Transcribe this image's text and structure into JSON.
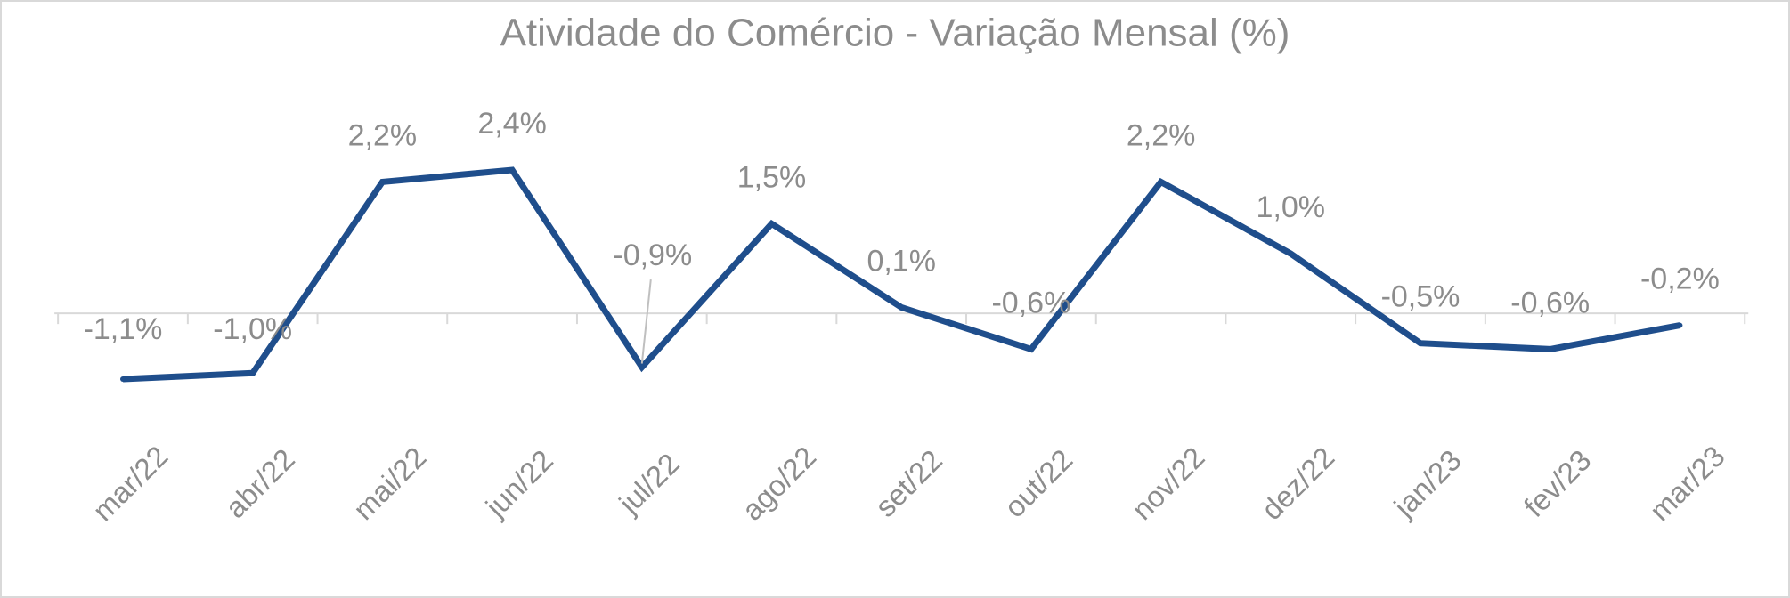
{
  "chart_data": {
    "type": "line",
    "title": "Atividade do Comércio - Variação Mensal (%)",
    "categories": [
      "mar/22",
      "abr/22",
      "mai/22",
      "jun/22",
      "jul/22",
      "ago/22",
      "set/22",
      "out/22",
      "nov/22",
      "dez/22",
      "jan/23",
      "fev/23",
      "mar/23"
    ],
    "values": [
      -1.1,
      -1.0,
      2.2,
      2.4,
      -0.9,
      1.5,
      0.1,
      -0.6,
      2.2,
      1.0,
      -0.5,
      -0.6,
      -0.2
    ],
    "value_labels": [
      "-1,1%",
      "-1,0%",
      "2,2%",
      "2,4%",
      "-0,9%",
      "1,5%",
      "0,1%",
      "-0,6%",
      "2,2%",
      "1,0%",
      "-0,5%",
      "-0,6%",
      "-0,2%"
    ],
    "color": "#1f4e8c"
  }
}
